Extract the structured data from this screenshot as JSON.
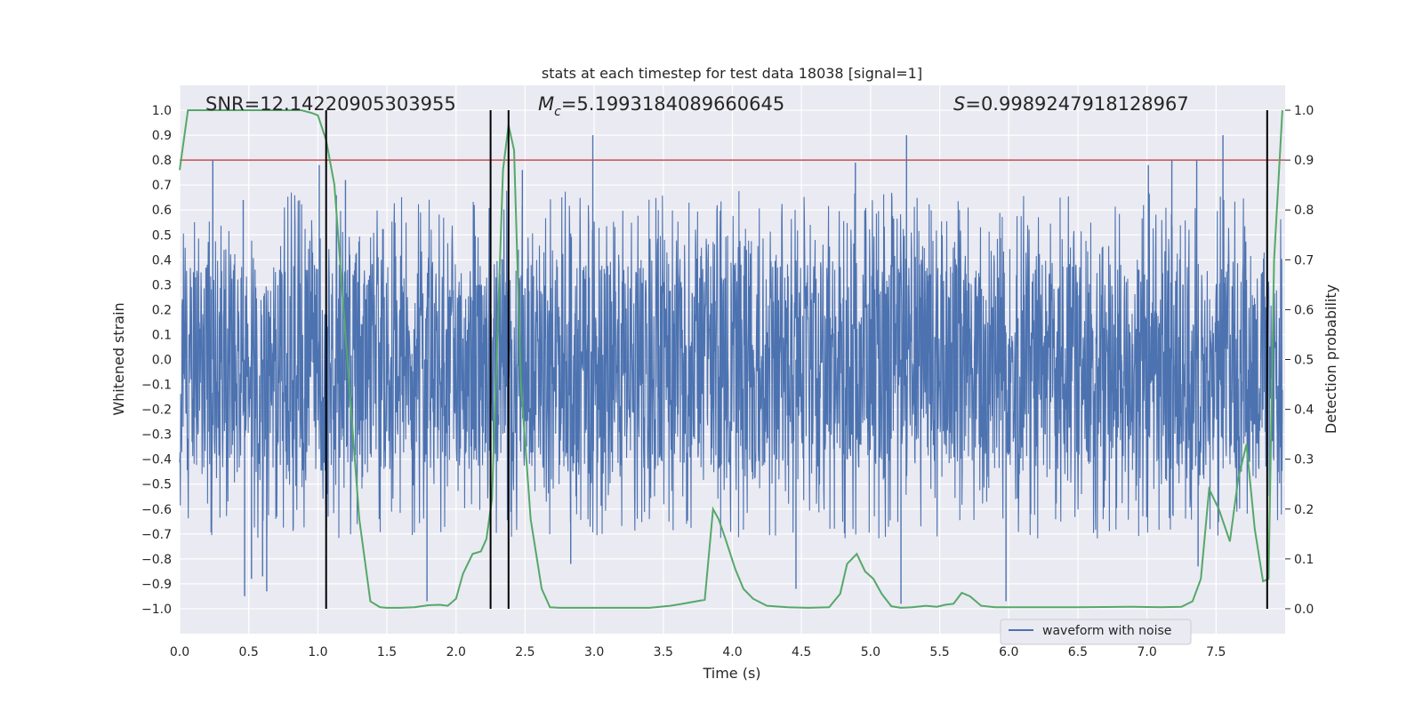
{
  "chart_data": {
    "type": "line",
    "title": "stats at each timestep for test data 18038 [signal=1]",
    "xlabel": "Time (s)",
    "ylabel": "Whitened strain",
    "y2label": "Detection probability",
    "xlim": [
      0.0,
      8.0
    ],
    "ylim": [
      -1.1,
      1.1
    ],
    "y2lim": [
      -0.05,
      1.05
    ],
    "x_ticks": [
      0.0,
      0.5,
      1.0,
      1.5,
      2.0,
      2.5,
      3.0,
      3.5,
      4.0,
      4.5,
      5.0,
      5.5,
      6.0,
      6.5,
      7.0,
      7.5
    ],
    "y_ticks": [
      1.0,
      0.9,
      0.8,
      0.7,
      0.6,
      0.5,
      0.4,
      0.3,
      0.2,
      0.1,
      0.0,
      -0.1,
      -0.2,
      -0.3,
      -0.4,
      -0.5,
      -0.6,
      -0.7,
      -0.8,
      -0.9,
      -1.0
    ],
    "y2_ticks": [
      1.0,
      0.9,
      0.8,
      0.7,
      0.6,
      0.5,
      0.4,
      0.3,
      0.2,
      0.1,
      0.0
    ],
    "annotations": {
      "snr": "SNR=12.14220905303955",
      "mc_symbol": "M",
      "mc_sub": "c",
      "mc_value": "=5.1993184089660645",
      "s_symbol": "S",
      "s_value": "=0.9989247918128967"
    },
    "legend": {
      "label": "waveform with noise",
      "placement": "lower-right"
    },
    "grid": true,
    "threshold": {
      "axis": "y2",
      "value": 0.9,
      "color": "#c44e52"
    },
    "vlines": [
      1.06,
      2.25,
      2.38,
      7.87
    ],
    "waveform": {
      "name": "waveform with noise",
      "color": "#4c72b0",
      "core_band": [
        -0.42,
        0.38
      ],
      "amplitude_range": [
        -0.97,
        0.9
      ],
      "notable_peaks": [
        [
          0.24,
          0.8
        ],
        [
          1.01,
          0.78
        ],
        [
          1.2,
          0.72
        ],
        [
          2.48,
          0.76
        ],
        [
          2.99,
          0.9
        ],
        [
          4.89,
          0.79
        ],
        [
          5.26,
          0.9
        ],
        [
          7.01,
          0.78
        ],
        [
          7.36,
          0.8
        ],
        [
          7.55,
          0.9
        ],
        [
          7.18,
          0.8
        ],
        [
          0.46,
          0.64
        ]
      ],
      "notable_troughs": [
        [
          0.47,
          -0.95
        ],
        [
          0.63,
          -0.93
        ],
        [
          1.79,
          -0.97
        ],
        [
          4.46,
          -0.92
        ],
        [
          5.22,
          -0.98
        ],
        [
          5.98,
          -0.97
        ],
        [
          7.37,
          -0.83
        ],
        [
          0.52,
          -0.88
        ],
        [
          0.6,
          -0.87
        ],
        [
          2.83,
          -0.82
        ]
      ]
    },
    "detection_probability": {
      "color": "#55a868",
      "x": [
        0.0,
        0.06,
        0.2,
        0.5,
        0.88,
        0.95,
        1.0,
        1.06,
        1.12,
        1.2,
        1.3,
        1.38,
        1.45,
        1.5,
        1.6,
        1.7,
        1.8,
        1.88,
        1.94,
        2.0,
        2.05,
        2.12,
        2.18,
        2.22,
        2.26,
        2.3,
        2.34,
        2.38,
        2.42,
        2.47,
        2.54,
        2.62,
        2.68,
        2.75,
        3.0,
        3.2,
        3.4,
        3.55,
        3.62,
        3.8,
        3.86,
        3.9,
        3.95,
        4.02,
        4.08,
        4.15,
        4.25,
        4.4,
        4.55,
        4.7,
        4.78,
        4.83,
        4.9,
        4.96,
        5.02,
        5.08,
        5.15,
        5.22,
        5.3,
        5.4,
        5.48,
        5.54,
        5.6,
        5.66,
        5.72,
        5.8,
        5.9,
        6.0,
        6.5,
        6.9,
        7.1,
        7.25,
        7.33,
        7.39,
        7.45,
        7.52,
        7.6,
        7.66,
        7.72,
        7.78,
        7.84,
        7.88,
        7.92,
        7.98
      ],
      "values": [
        0.88,
        1.0,
        1.0,
        1.0,
        1.0,
        0.995,
        0.99,
        0.94,
        0.85,
        0.55,
        0.18,
        0.015,
        0.003,
        0.002,
        0.002,
        0.003,
        0.007,
        0.008,
        0.006,
        0.02,
        0.07,
        0.11,
        0.115,
        0.14,
        0.22,
        0.55,
        0.88,
        0.97,
        0.92,
        0.45,
        0.18,
        0.04,
        0.003,
        0.002,
        0.002,
        0.002,
        0.002,
        0.006,
        0.009,
        0.018,
        0.2,
        0.18,
        0.14,
        0.08,
        0.04,
        0.02,
        0.006,
        0.003,
        0.002,
        0.003,
        0.03,
        0.09,
        0.11,
        0.075,
        0.06,
        0.03,
        0.005,
        0.002,
        0.003,
        0.006,
        0.004,
        0.008,
        0.01,
        0.032,
        0.025,
        0.006,
        0.003,
        0.003,
        0.003,
        0.004,
        0.003,
        0.004,
        0.015,
        0.06,
        0.24,
        0.2,
        0.135,
        0.26,
        0.33,
        0.16,
        0.055,
        0.06,
        0.7,
        1.0
      ]
    }
  }
}
